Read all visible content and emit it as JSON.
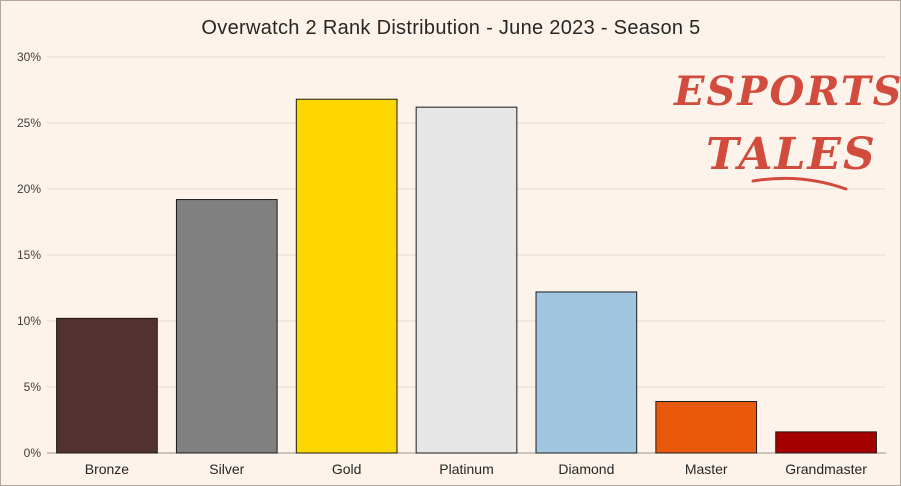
{
  "chart_data": {
    "type": "bar",
    "title": "Overwatch 2 Rank Distribution - June 2023 - Season 5",
    "xlabel": "",
    "ylabel": "",
    "categories": [
      "Bronze",
      "Silver",
      "Gold",
      "Platinum",
      "Diamond",
      "Master",
      "Grandmaster"
    ],
    "values": [
      10.2,
      19.2,
      26.8,
      26.2,
      12.2,
      3.9,
      1.6
    ],
    "colors": [
      "#523231",
      "#808080",
      "#ffd700",
      "#e6e6e6",
      "#a1c6df",
      "#e8590c",
      "#a50000"
    ],
    "ylim": [
      0,
      30
    ],
    "yticks": [
      0,
      5,
      10,
      15,
      20,
      25,
      30
    ],
    "ytick_labels": [
      "0%",
      "5%",
      "10%",
      "15%",
      "20%",
      "25%",
      "30%"
    ],
    "grid": true,
    "legend": "none"
  },
  "watermark": {
    "line1": "ESPORTS",
    "line2": "TALES",
    "color": "#d14c3d"
  }
}
